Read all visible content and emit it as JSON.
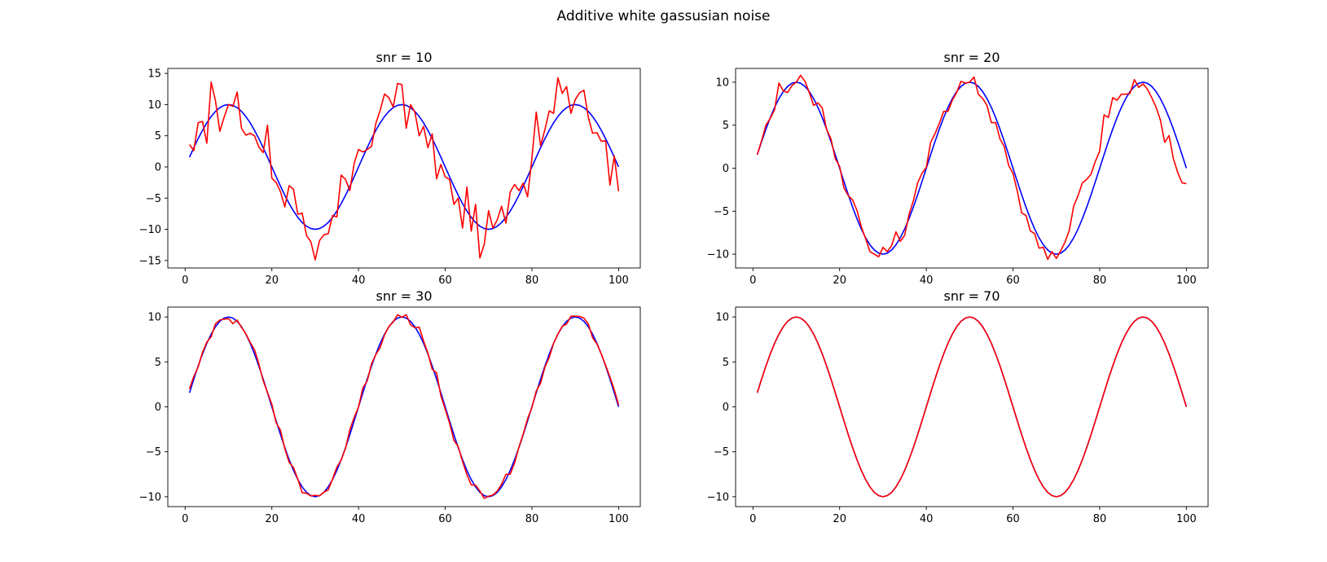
{
  "figure": {
    "suptitle": "Additive white gassusian noise"
  },
  "colors": {
    "clean": "#0000ff",
    "noisy": "#ff0000",
    "axes": "#000000",
    "background": "#ffffff"
  },
  "chart_data": [
    {
      "type": "line",
      "title": "snr = 10",
      "xlabel": "",
      "ylabel": "",
      "xlim": [
        -4,
        105
      ],
      "ylim": [
        -16.2,
        15.8
      ],
      "xticks": [
        0,
        20,
        40,
        60,
        80,
        100
      ],
      "yticks": [
        -15,
        -10,
        -5,
        0,
        5,
        10,
        15
      ],
      "grid": false,
      "legend": "none",
      "series": [
        {
          "color": "#0000ff",
          "kind": "sine",
          "amplitude": 10,
          "period": 40,
          "phase": 0,
          "x_start": 1,
          "x_end": 100,
          "step": 1
        },
        {
          "color": "#ff0000",
          "x": [
            1,
            2,
            3,
            4,
            5,
            6,
            7,
            8,
            9,
            10,
            11,
            12,
            13,
            14,
            15,
            16,
            17,
            18,
            19,
            20,
            21,
            22,
            23,
            24,
            25,
            26,
            27,
            28,
            29,
            30,
            31,
            32,
            33,
            34,
            35,
            36,
            37,
            38,
            39,
            40,
            41,
            42,
            43,
            44,
            45,
            46,
            47,
            48,
            49,
            50,
            51,
            52,
            53,
            54,
            55,
            56,
            57,
            58,
            59,
            60,
            61,
            62,
            63,
            64,
            65,
            66,
            67,
            68,
            69,
            70,
            71,
            72,
            73,
            74,
            75,
            76,
            77,
            78,
            79,
            80,
            81,
            82,
            83,
            84,
            85,
            86,
            87,
            88,
            89,
            90,
            91,
            92,
            93,
            94,
            95,
            96,
            97,
            98,
            99,
            100
          ],
          "y": [
            3.6,
            2.6,
            7.1,
            7.3,
            3.8,
            13.6,
            10.6,
            5.7,
            8.0,
            10.0,
            9.7,
            12.0,
            6.2,
            5.1,
            5.4,
            5.0,
            3.2,
            2.3,
            6.7,
            -1.8,
            -2.5,
            -4.0,
            -6.4,
            -3.0,
            -3.6,
            -7.6,
            -7.4,
            -11.0,
            -12.0,
            -14.9,
            -11.8,
            -10.9,
            -10.7,
            -7.8,
            -8.0,
            -1.3,
            -2.0,
            -3.8,
            0.6,
            2.8,
            2.4,
            2.8,
            3.3,
            7.0,
            9.1,
            11.7,
            11.1,
            9.6,
            13.4,
            13.2,
            6.2,
            10.0,
            8.8,
            5.0,
            6.5,
            3.1,
            5.3,
            -1.9,
            0.4,
            -1.6,
            -2.0,
            -6.0,
            -5.0,
            -9.8,
            -3.2,
            -10.3,
            -6.0,
            -14.6,
            -12.4,
            -7.0,
            -9.8,
            -8.5,
            -6.3,
            -9.0,
            -4.0,
            -2.8,
            -3.8,
            -2.6,
            -4.8,
            1.4,
            8.8,
            3.4,
            6.0,
            9.0,
            8.6,
            14.3,
            11.8,
            12.9,
            8.6,
            10.8,
            11.9,
            12.3,
            8.0,
            5.4,
            5.5,
            4.1,
            4.2,
            -2.9,
            1.8,
            -3.9
          ]
        }
      ]
    },
    {
      "type": "line",
      "title": "snr = 20",
      "xlabel": "",
      "ylabel": "",
      "xlim": [
        -4,
        105
      ],
      "ylim": [
        -11.6,
        11.6
      ],
      "xticks": [
        0,
        20,
        40,
        60,
        80,
        100
      ],
      "yticks": [
        -10,
        -5,
        0,
        5,
        10
      ],
      "grid": false,
      "legend": "none",
      "series": [
        {
          "color": "#0000ff",
          "kind": "sine",
          "amplitude": 10,
          "period": 40,
          "phase": 0,
          "x_start": 1,
          "x_end": 100,
          "step": 1
        },
        {
          "color": "#ff0000",
          "x": [
            1,
            2,
            3,
            4,
            5,
            6,
            7,
            8,
            9,
            10,
            11,
            12,
            13,
            14,
            15,
            16,
            17,
            18,
            19,
            20,
            21,
            22,
            23,
            24,
            25,
            26,
            27,
            28,
            29,
            30,
            31,
            32,
            33,
            34,
            35,
            36,
            37,
            38,
            39,
            40,
            41,
            42,
            43,
            44,
            45,
            46,
            47,
            48,
            49,
            50,
            51,
            52,
            53,
            54,
            55,
            56,
            57,
            58,
            59,
            60,
            61,
            62,
            63,
            64,
            65,
            66,
            67,
            68,
            69,
            70,
            71,
            72,
            73,
            74,
            75,
            76,
            77,
            78,
            79,
            80,
            81,
            82,
            83,
            84,
            85,
            86,
            87,
            88,
            89,
            90,
            91,
            92,
            93,
            94,
            95,
            96,
            97,
            98,
            99,
            100
          ],
          "y": [
            1.6,
            3.2,
            5.0,
            5.8,
            6.8,
            9.9,
            9.0,
            8.8,
            9.6,
            10.0,
            10.8,
            10.1,
            8.8,
            7.3,
            7.6,
            7.0,
            4.5,
            3.4,
            1.1,
            0.2,
            -2.3,
            -3.2,
            -3.7,
            -4.9,
            -6.8,
            -8.2,
            -9.7,
            -10.0,
            -10.3,
            -9.2,
            -9.7,
            -9.0,
            -7.4,
            -8.5,
            -7.8,
            -5.4,
            -3.8,
            -1.7,
            -0.6,
            0.1,
            3.0,
            4.0,
            5.2,
            6.6,
            6.6,
            7.9,
            8.8,
            10.1,
            9.9,
            10.0,
            10.6,
            8.6,
            8.1,
            7.3,
            5.3,
            5.3,
            3.4,
            2.5,
            0.3,
            -0.6,
            -2.7,
            -5.2,
            -5.5,
            -7.3,
            -7.6,
            -9.3,
            -9.2,
            -10.6,
            -9.7,
            -10.5,
            -9.6,
            -8.6,
            -7.2,
            -4.4,
            -3.2,
            -1.7,
            -1.3,
            -0.7,
            0.8,
            2.0,
            6.2,
            5.9,
            8.2,
            7.9,
            8.6,
            8.6,
            8.7,
            10.3,
            9.4,
            9.8,
            9.2,
            8.2,
            7.1,
            5.6,
            3.0,
            3.8,
            1.1,
            -0.5,
            -1.7,
            -1.8
          ]
        }
      ]
    },
    {
      "type": "line",
      "title": "snr = 30",
      "xlabel": "",
      "ylabel": "",
      "xlim": [
        -4,
        105
      ],
      "ylim": [
        -11.1,
        11.1
      ],
      "xticks": [
        0,
        20,
        40,
        60,
        80,
        100
      ],
      "yticks": [
        -10,
        -5,
        0,
        5,
        10
      ],
      "grid": false,
      "legend": "none",
      "series": [
        {
          "color": "#0000ff",
          "kind": "sine",
          "amplitude": 10,
          "period": 40,
          "phase": 0,
          "x_start": 1,
          "x_end": 100,
          "step": 1
        },
        {
          "color": "#ff0000",
          "kind": "sine-with-noise",
          "amplitude": 10,
          "period": 40,
          "phase": 0,
          "x_start": 1,
          "x_end": 100,
          "step": 1,
          "noise_std": 0.32
        }
      ]
    },
    {
      "type": "line",
      "title": "snr = 70",
      "xlabel": "",
      "ylabel": "",
      "xlim": [
        -4,
        105
      ],
      "ylim": [
        -11.1,
        11.1
      ],
      "xticks": [
        0,
        20,
        40,
        60,
        80,
        100
      ],
      "yticks": [
        -10,
        -5,
        0,
        5,
        10
      ],
      "grid": false,
      "legend": "none",
      "series": [
        {
          "color": "#0000ff",
          "kind": "sine",
          "amplitude": 10,
          "period": 40,
          "phase": 0,
          "x_start": 1,
          "x_end": 100,
          "step": 1
        },
        {
          "color": "#ff0000",
          "kind": "sine",
          "amplitude": 10,
          "period": 40,
          "phase": 0,
          "x_start": 1,
          "x_end": 100,
          "step": 1
        }
      ]
    }
  ]
}
